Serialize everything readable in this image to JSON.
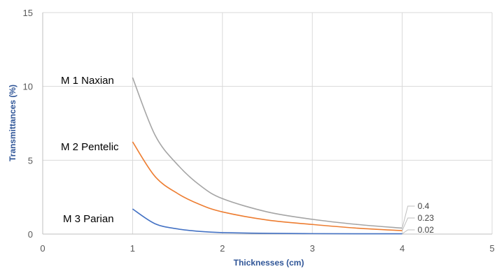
{
  "chart_data": {
    "type": "line",
    "title": "",
    "xlabel": "Thicknesses (cm)",
    "ylabel": "Transmittances (%)",
    "xlim": [
      0,
      5
    ],
    "ylim": [
      0,
      15
    ],
    "xticks": [
      0,
      1,
      2,
      3,
      4,
      5
    ],
    "yticks": [
      0,
      5,
      10,
      15
    ],
    "xtick_labels": [
      "0",
      "1",
      "2",
      "3",
      "4",
      "5"
    ],
    "ytick_labels": [
      "0",
      "5",
      "10",
      "15"
    ],
    "grid": true,
    "legend": "none",
    "series": [
      {
        "name": "M 1 Naxian",
        "color": "#a5a5a5",
        "x": [
          1,
          1.25,
          1.5,
          1.75,
          2,
          2.5,
          3,
          3.5,
          4
        ],
        "y": [
          10.6,
          6.7,
          4.7,
          3.3,
          2.4,
          1.5,
          1.0,
          0.65,
          0.4
        ],
        "end_label": "0.4"
      },
      {
        "name": "M 2 Pentelic",
        "color": "#ed7d31",
        "x": [
          1,
          1.25,
          1.5,
          1.75,
          2,
          2.5,
          3,
          3.5,
          4
        ],
        "y": [
          6.25,
          3.9,
          2.75,
          2.0,
          1.5,
          0.95,
          0.65,
          0.4,
          0.23
        ],
        "end_label": "0.23"
      },
      {
        "name": "M 3 Parian",
        "color": "#4472c4",
        "x": [
          1,
          1.25,
          1.5,
          1.75,
          2,
          2.5,
          3,
          3.5,
          4
        ],
        "y": [
          1.7,
          0.7,
          0.35,
          0.18,
          0.1,
          0.05,
          0.03,
          0.02,
          0.02
        ],
        "end_label": "0.02"
      }
    ]
  }
}
